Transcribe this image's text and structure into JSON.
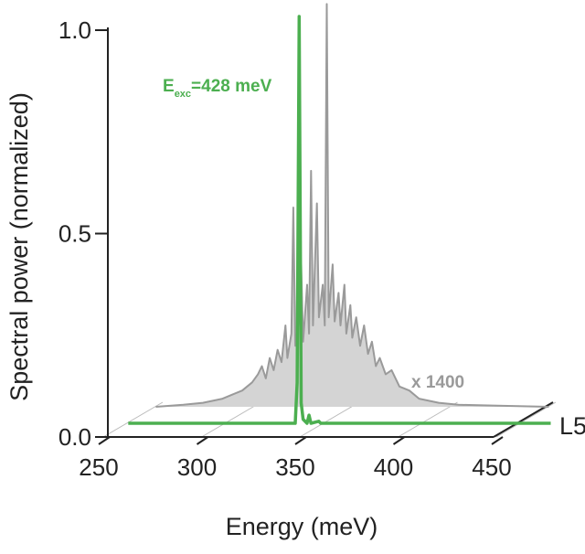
{
  "chart_data": {
    "type": "line",
    "xlabel": "Energy (meV)",
    "ylabel": "Spectral power (normalized)",
    "depth_label": "L5",
    "xlim": [
      250,
      450
    ],
    "ylim": [
      0,
      1
    ],
    "xticks": [
      250,
      300,
      350,
      400,
      450
    ],
    "yticks": [
      {
        "value": 0,
        "label": "0.0"
      },
      0.5,
      {
        "value": 1,
        "label": "1.0"
      }
    ],
    "series": [
      {
        "color": "#9a9a9a",
        "fill": "#d4d4d4",
        "annotation": "x 1400",
        "x": [
          266,
          280,
          290,
          300,
          305,
          310,
          315,
          318,
          320,
          322,
          324,
          326,
          328,
          330,
          332,
          333,
          335,
          336,
          337,
          339,
          340,
          341,
          343,
          344,
          345,
          346,
          348,
          349,
          351,
          352,
          353,
          354,
          356,
          357,
          359,
          360,
          362,
          363,
          365,
          366,
          368,
          370,
          372,
          374,
          376,
          378,
          380,
          383,
          386,
          390,
          395,
          400,
          410,
          420,
          440,
          466
        ],
        "values": [
          0,
          0.005,
          0.01,
          0.02,
          0.03,
          0.04,
          0.06,
          0.08,
          0.1,
          0.07,
          0.12,
          0.09,
          0.14,
          0.11,
          0.2,
          0.12,
          0.18,
          0.49,
          0.15,
          0.22,
          0.35,
          0.16,
          0.3,
          0.18,
          0.58,
          0.2,
          0.5,
          0.22,
          0.3,
          0.2,
          0.99,
          0.22,
          0.35,
          0.21,
          0.28,
          0.2,
          0.3,
          0.18,
          0.25,
          0.17,
          0.22,
          0.15,
          0.2,
          0.13,
          0.16,
          0.1,
          0.12,
          0.08,
          0.09,
          0.05,
          0.04,
          0.02,
          0.01,
          0.005,
          0.003,
          0
        ]
      },
      {
        "color": "#4caf50",
        "annotation": {
          "main": "E",
          "sub": "exc",
          "rest": "=428 meV"
        },
        "x": [
          265,
          350,
          351,
          352,
          353,
          354,
          356,
          357,
          358,
          362,
          363,
          480
        ],
        "values": [
          0,
          0,
          0.1,
          1.0,
          0.05,
          0.01,
          0,
          0.02,
          0,
          0.005,
          0,
          0
        ]
      }
    ]
  }
}
